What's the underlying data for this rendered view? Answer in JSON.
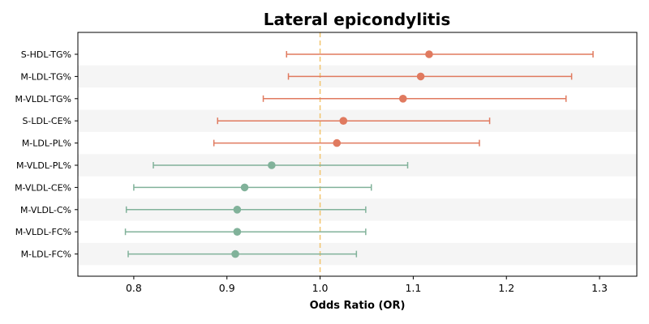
{
  "chart_data": {
    "type": "forest",
    "title": "Lateral epicondylitis",
    "xlabel": "Odds Ratio (OR)",
    "ylabel": "",
    "xlim": [
      0.74,
      1.34
    ],
    "xticks": [
      0.8,
      0.9,
      1.0,
      1.1,
      1.2,
      1.3
    ],
    "xtick_labels": [
      "0.8",
      "0.9",
      "1.0",
      "1.1",
      "1.2",
      "1.3"
    ],
    "reference_line": 1.0,
    "reference_color": "#f2c46d",
    "grid": false,
    "alternating_row_bands": true,
    "band_color": "#f5f5f5",
    "colors": {
      "positive": "#e07a5f",
      "negative": "#81b29a"
    },
    "rows": [
      {
        "label": "S-HDL-TG%",
        "or": 1.117,
        "lower": 0.964,
        "upper": 1.293,
        "color": "#e07a5f"
      },
      {
        "label": "M-LDL-TG%",
        "or": 1.108,
        "lower": 0.966,
        "upper": 1.27,
        "color": "#e07a5f"
      },
      {
        "label": "M-VLDL-TG%",
        "or": 1.089,
        "lower": 0.939,
        "upper": 1.264,
        "color": "#e07a5f"
      },
      {
        "label": "S-LDL-CE%",
        "or": 1.025,
        "lower": 0.89,
        "upper": 1.182,
        "color": "#e07a5f"
      },
      {
        "label": "M-LDL-PL%",
        "or": 1.018,
        "lower": 0.886,
        "upper": 1.171,
        "color": "#e07a5f"
      },
      {
        "label": "M-VLDL-PL%",
        "or": 0.948,
        "lower": 0.821,
        "upper": 1.094,
        "color": "#81b29a"
      },
      {
        "label": "M-VLDL-CE%",
        "or": 0.919,
        "lower": 0.8,
        "upper": 1.055,
        "color": "#81b29a"
      },
      {
        "label": "M-VLDL-C%",
        "or": 0.911,
        "lower": 0.792,
        "upper": 1.049,
        "color": "#81b29a"
      },
      {
        "label": "M-VLDL-FC%",
        "or": 0.911,
        "lower": 0.791,
        "upper": 1.049,
        "color": "#81b29a"
      },
      {
        "label": "M-LDL-FC%",
        "or": 0.909,
        "lower": 0.794,
        "upper": 1.039,
        "color": "#81b29a"
      }
    ]
  }
}
